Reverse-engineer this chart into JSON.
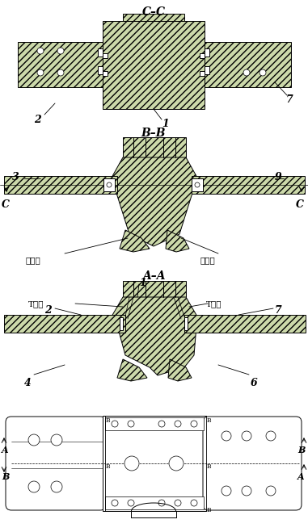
{
  "bg_color": "#ffffff",
  "line_color": "#000000",
  "fill_hatch": "#ccd9aa",
  "fill_white": "#ffffff",
  "fill_gray": "#aaaaaa",
  "title_cc": "C–C",
  "title_bb": "B–B",
  "title_aa": "A–A",
  "label_1": "1",
  "label_2": "2",
  "label_3": "3",
  "label_4": "4",
  "label_6": "6",
  "label_7": "7",
  "label_9": "9",
  "label_C": "C",
  "label_A": "A",
  "label_B": "B",
  "label_chengxingduan": "成型端",
  "label_Ttype": "T型槽",
  "fig_width": 3.81,
  "fig_height": 6.59,
  "dpi": 100
}
